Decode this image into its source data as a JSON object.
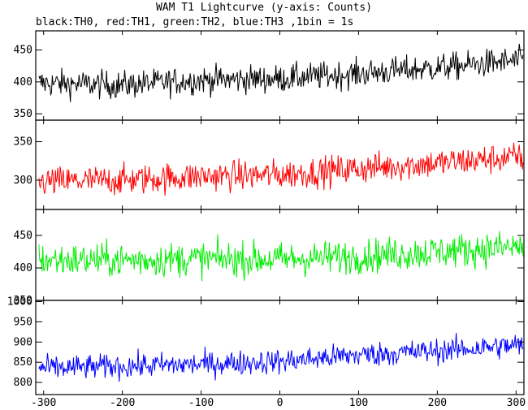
{
  "title": "WAM T1 Lightcurve (y-axis: Counts)",
  "subtitle": "black:TH0, red:TH1, green:TH2, blue:TH3 ,1bin = 1s",
  "chart_data": [
    {
      "type": "line",
      "series_name": "TH0",
      "color": "#000000",
      "xlim": [
        -310,
        310
      ],
      "ylim": [
        340,
        480
      ],
      "yticks": [
        350,
        400,
        450
      ],
      "trend": [
        [
          -300,
          398
        ],
        [
          -200,
          395
        ],
        [
          -100,
          403
        ],
        [
          0,
          405
        ],
        [
          100,
          413
        ],
        [
          200,
          422
        ],
        [
          300,
          433
        ]
      ],
      "noise_amplitude": 20
    },
    {
      "type": "line",
      "series_name": "TH1",
      "color": "#ff0000",
      "xlim": [
        -310,
        310
      ],
      "ylim": [
        262,
        378
      ],
      "yticks": [
        300,
        350
      ],
      "trend": [
        [
          -300,
          298
        ],
        [
          -200,
          300
        ],
        [
          -100,
          305
        ],
        [
          0,
          307
        ],
        [
          100,
          315
        ],
        [
          200,
          322
        ],
        [
          300,
          330
        ]
      ],
      "noise_amplitude": 18
    },
    {
      "type": "line",
      "series_name": "TH2",
      "color": "#00ee00",
      "xlim": [
        -310,
        310
      ],
      "ylim": [
        350,
        490
      ],
      "yticks": [
        350,
        400,
        450
      ],
      "trend": [
        [
          -300,
          412
        ],
        [
          -200,
          412
        ],
        [
          -100,
          414
        ],
        [
          0,
          413
        ],
        [
          100,
          418
        ],
        [
          200,
          425
        ],
        [
          300,
          432
        ]
      ],
      "noise_amplitude": 24
    },
    {
      "type": "line",
      "series_name": "TH3",
      "color": "#0000ff",
      "xlim": [
        -310,
        310
      ],
      "ylim": [
        770,
        1003
      ],
      "yticks": [
        800,
        850,
        900,
        950,
        1000
      ],
      "trend": [
        [
          -300,
          835
        ],
        [
          -200,
          840
        ],
        [
          -100,
          845
        ],
        [
          0,
          852
        ],
        [
          100,
          868
        ],
        [
          200,
          878
        ],
        [
          300,
          892
        ]
      ],
      "noise_amplitude": 28
    }
  ],
  "x_axis": {
    "ticks": [
      -300,
      -200,
      -100,
      0,
      100,
      200,
      300
    ]
  }
}
